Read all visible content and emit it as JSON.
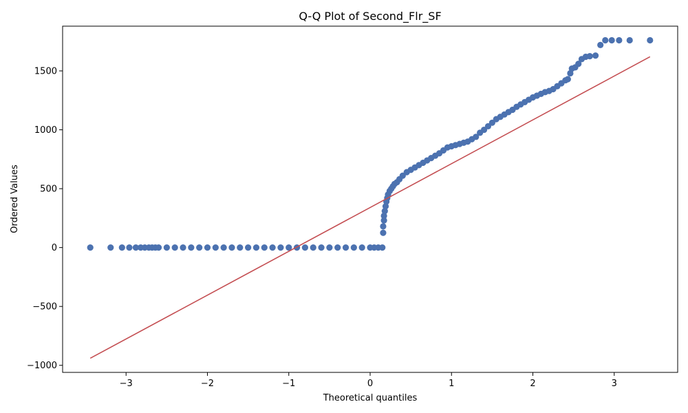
{
  "chart_data": {
    "type": "scatter",
    "title": "Q-Q Plot of Second_Flr_SF",
    "xlabel": "Theoretical quantiles",
    "ylabel": "Ordered Values",
    "xlim": [
      -3.78,
      3.78
    ],
    "ylim": [
      -1060,
      1880
    ],
    "xticks": [
      -3,
      -2,
      -1,
      0,
      1,
      2,
      3
    ],
    "xtick_labels": [
      "−3",
      "−2",
      "−1",
      "0",
      "1",
      "2",
      "3"
    ],
    "yticks": [
      -1000,
      -500,
      0,
      500,
      1000,
      1500
    ],
    "ytick_labels": [
      "−1000",
      "−500",
      "0",
      "500",
      "1000",
      "1500"
    ],
    "grid": false,
    "colors": {
      "points": "#4c72b0",
      "fit_line": "#c44e52"
    },
    "series": [
      {
        "type": "scatter",
        "x": [
          -3.44,
          -3.19,
          -3.05,
          -2.96,
          -2.88,
          -2.82,
          -2.77,
          -2.72,
          -2.68,
          -2.64,
          -2.6,
          -2.5,
          -2.4,
          -2.3,
          -2.2,
          -2.1,
          -2.0,
          -1.9,
          -1.8,
          -1.7,
          -1.6,
          -1.5,
          -1.4,
          -1.3,
          -1.2,
          -1.1,
          -1.0,
          -0.9,
          -0.8,
          -0.7,
          -0.6,
          -0.5,
          -0.4,
          -0.3,
          -0.2,
          -0.1,
          0.0,
          0.05,
          0.1,
          0.15,
          0.16,
          0.16,
          0.17,
          0.17,
          0.18,
          0.19,
          0.2,
          0.21,
          0.22,
          0.24,
          0.26,
          0.28,
          0.3,
          0.33,
          0.36,
          0.4,
          0.45,
          0.5,
          0.55,
          0.6,
          0.65,
          0.7,
          0.75,
          0.8,
          0.85,
          0.9,
          0.95,
          1.0,
          1.05,
          1.1,
          1.15,
          1.2,
          1.25,
          1.3,
          1.35,
          1.4,
          1.45,
          1.5,
          1.55,
          1.6,
          1.65,
          1.7,
          1.75,
          1.8,
          1.85,
          1.9,
          1.95,
          2.0,
          2.05,
          2.1,
          2.15,
          2.2,
          2.25,
          2.3,
          2.35,
          2.4,
          2.43,
          2.46,
          2.48,
          2.52,
          2.56,
          2.6,
          2.65,
          2.7,
          2.77,
          2.83,
          2.89,
          2.97,
          3.06,
          3.19,
          3.44
        ],
        "y": [
          0,
          0,
          0,
          0,
          0,
          0,
          0,
          0,
          0,
          0,
          0,
          0,
          0,
          0,
          0,
          0,
          0,
          0,
          0,
          0,
          0,
          0,
          0,
          0,
          0,
          0,
          0,
          0,
          0,
          0,
          0,
          0,
          0,
          0,
          0,
          0,
          0,
          0,
          0,
          0,
          125,
          180,
          230,
          270,
          310,
          350,
          390,
          420,
          450,
          480,
          500,
          520,
          540,
          555,
          580,
          610,
          640,
          660,
          680,
          700,
          720,
          740,
          760,
          780,
          800,
          825,
          850,
          860,
          870,
          880,
          890,
          900,
          920,
          940,
          975,
          1000,
          1030,
          1060,
          1090,
          1110,
          1130,
          1150,
          1170,
          1195,
          1215,
          1235,
          1255,
          1275,
          1290,
          1305,
          1320,
          1330,
          1345,
          1370,
          1395,
          1420,
          1430,
          1480,
          1520,
          1530,
          1560,
          1600,
          1620,
          1625,
          1630,
          1720,
          1760,
          1760,
          1760,
          1760,
          1760
        ]
      },
      {
        "type": "line",
        "x": [
          -3.44,
          3.44
        ],
        "y": [
          -940,
          1620
        ]
      }
    ]
  }
}
